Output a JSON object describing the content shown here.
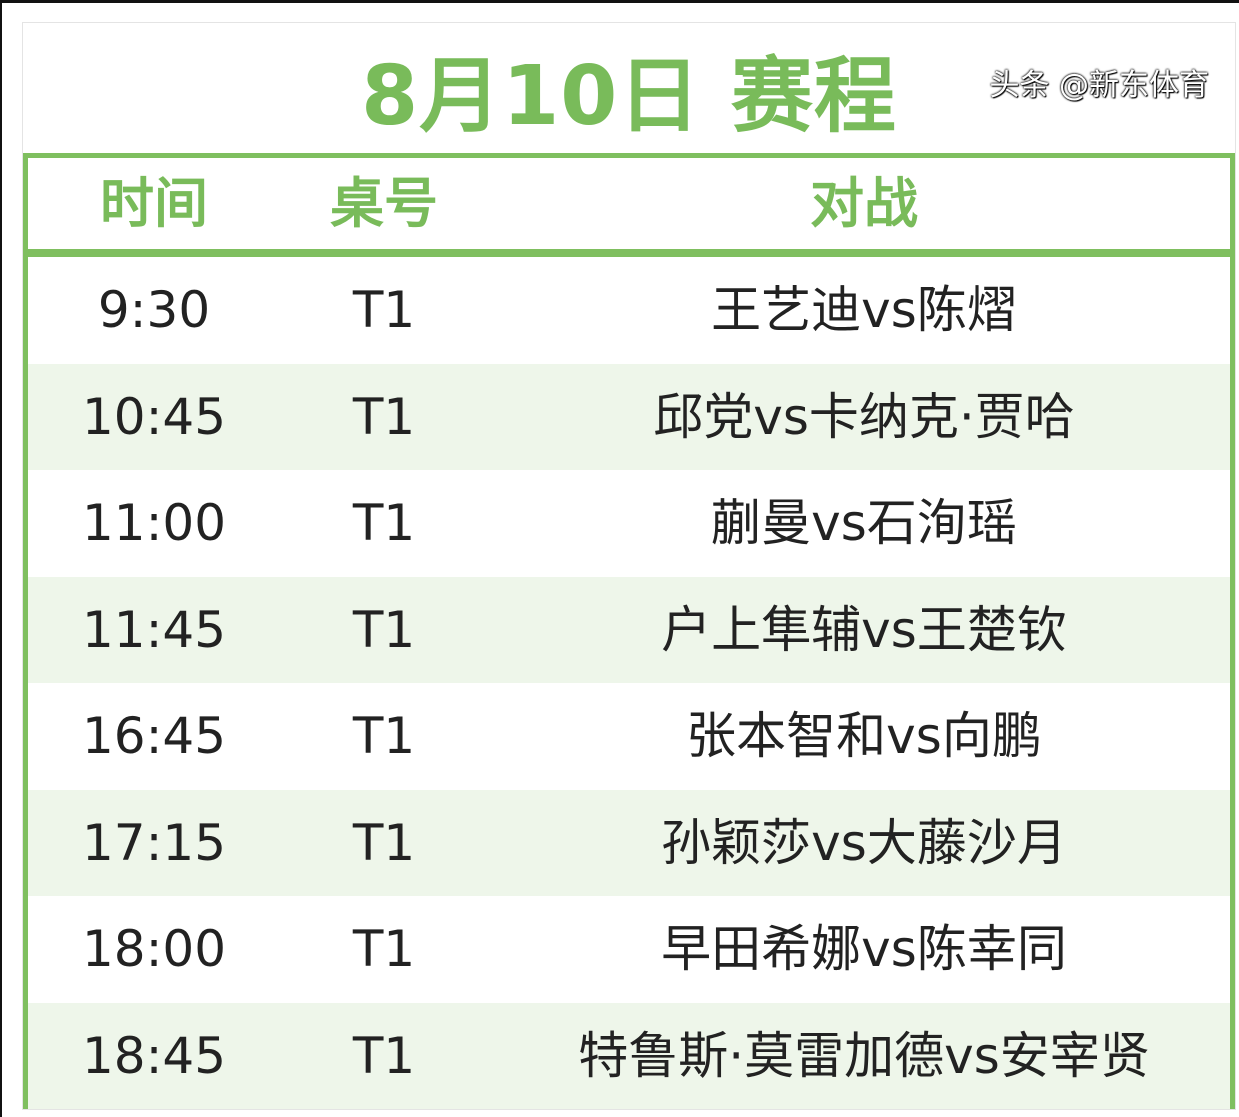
{
  "title": "8月10日 赛程",
  "headers": {
    "time": "时间",
    "table": "桌号",
    "match": "对战"
  },
  "rows": [
    {
      "time": "9:30",
      "table": "T1",
      "match": "王艺迪vs陈熠"
    },
    {
      "time": "10:45",
      "table": "T1",
      "match": "邱党vs卡纳克·贾哈"
    },
    {
      "time": "11:00",
      "table": "T1",
      "match": "蒯曼vs石洵瑶"
    },
    {
      "time": "11:45",
      "table": "T1",
      "match": "户上隼辅vs王楚钦"
    },
    {
      "time": "16:45",
      "table": "T1",
      "match": "张本智和vs向鹏"
    },
    {
      "time": "17:15",
      "table": "T1",
      "match": "孙颖莎vs大藤沙月"
    },
    {
      "time": "18:00",
      "table": "T1",
      "match": "早田希娜vs陈幸同"
    },
    {
      "time": "18:45",
      "table": "T1",
      "match": "特鲁斯·莫雷加德vs安宰贤"
    }
  ],
  "watermark": "头条 @新东体育",
  "colors": {
    "accent": "#79bb5a",
    "row_alt": "#eef6ea"
  }
}
